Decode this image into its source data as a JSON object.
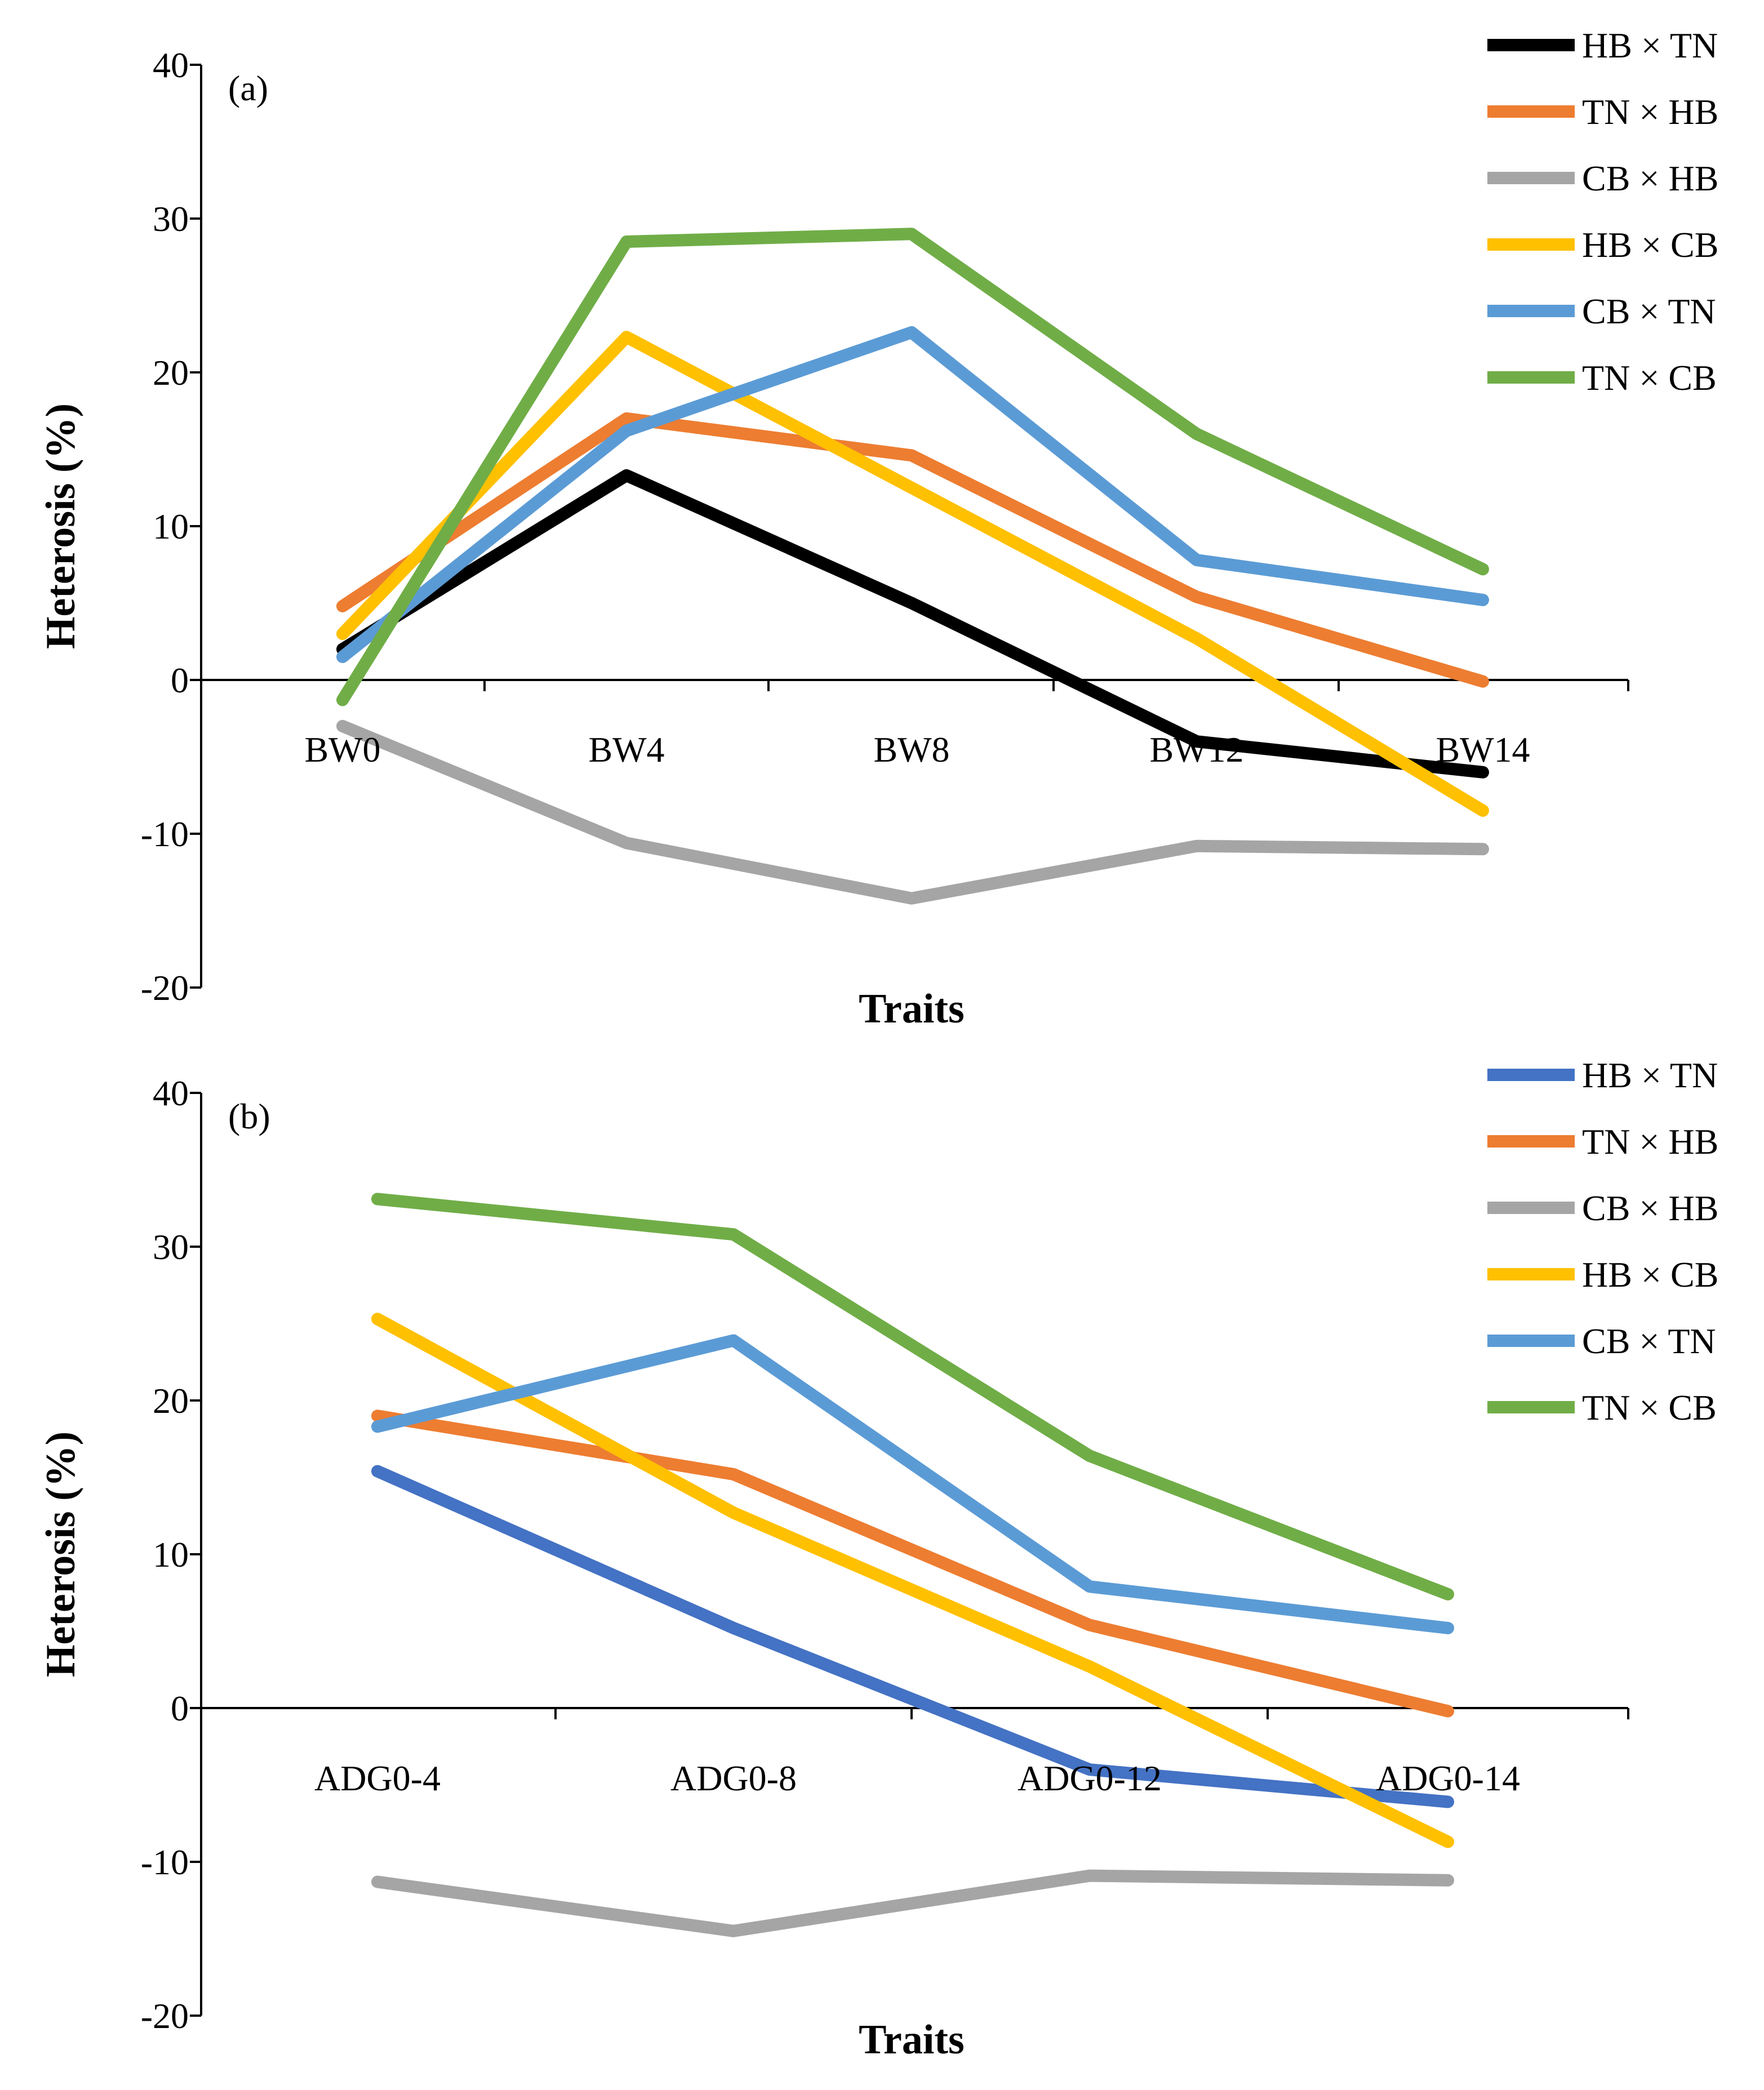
{
  "chart_data": [
    {
      "type": "line",
      "panel_label": "(a)",
      "xlabel": "Traits",
      "ylabel": "Heterosis (%)",
      "ylim": [
        -20,
        40
      ],
      "yticks": [
        "-20",
        "-10",
        "0",
        "10",
        "20",
        "30",
        "40"
      ],
      "ytick_values": [
        -20,
        -10,
        0,
        10,
        20,
        30,
        40
      ],
      "categories": [
        "BW0",
        "BW4",
        "BW8",
        "BW12",
        "BW14"
      ],
      "legend_position": "top-right",
      "series": [
        {
          "name": "HB × TN",
          "color": "#000000",
          "values": [
            2.0,
            13.3,
            5.0,
            -4.0,
            -6.0
          ]
        },
        {
          "name": "TN × HB",
          "color": "#ED7D31",
          "values": [
            4.8,
            17.0,
            14.6,
            5.4,
            -0.1
          ]
        },
        {
          "name": "CB × HB",
          "color": "#A5A5A5",
          "values": [
            -3.0,
            -10.6,
            -14.2,
            -10.8,
            -11.0
          ]
        },
        {
          "name": "HB × CB",
          "color": "#FFC000",
          "values": [
            3.0,
            22.3,
            12.5,
            2.7,
            -8.5
          ]
        },
        {
          "name": "CB × TN",
          "color": "#5B9BD5",
          "values": [
            1.5,
            16.2,
            22.6,
            7.8,
            5.2
          ]
        },
        {
          "name": "TN × CB",
          "color": "#70AD47",
          "values": [
            -1.3,
            28.5,
            29.0,
            16.0,
            7.2
          ]
        }
      ]
    },
    {
      "type": "line",
      "panel_label": "(b)",
      "xlabel": "Traits",
      "ylabel": "Heterosis (%)",
      "ylim": [
        -20,
        40
      ],
      "yticks": [
        "-20",
        "-10",
        "0",
        "10",
        "20",
        "30",
        "40"
      ],
      "ytick_values": [
        -20,
        -10,
        0,
        10,
        20,
        30,
        40
      ],
      "categories": [
        "ADG0-4",
        "ADG0-8",
        "ADG0-12",
        "ADG0-14"
      ],
      "legend_position": "top-right",
      "series": [
        {
          "name": "HB × TN",
          "color": "#4472C4",
          "values": [
            15.4,
            5.2,
            -4.0,
            -6.1
          ]
        },
        {
          "name": "TN × HB",
          "color": "#ED7D31",
          "values": [
            19.0,
            15.2,
            5.4,
            -0.2
          ]
        },
        {
          "name": "CB × HB",
          "color": "#A5A5A5",
          "values": [
            -11.3,
            -14.5,
            -10.9,
            -11.2
          ]
        },
        {
          "name": "HB × CB",
          "color": "#FFC000",
          "values": [
            25.3,
            12.7,
            2.7,
            -8.7
          ]
        },
        {
          "name": "CB × TN",
          "color": "#5B9BD5",
          "values": [
            18.3,
            23.9,
            7.9,
            5.2
          ]
        },
        {
          "name": "TN × CB",
          "color": "#70AD47",
          "values": [
            33.1,
            30.8,
            16.4,
            7.4
          ]
        }
      ]
    }
  ]
}
